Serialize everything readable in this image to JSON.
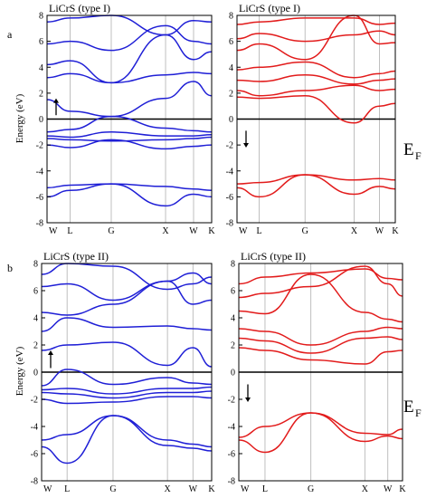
{
  "figure": {
    "ef_label": "E",
    "ef_sub": "F",
    "ylabel": "Energy (eV)"
  },
  "chart_data": [
    {
      "type": "line",
      "panel": "a",
      "title": "LiCrS (type I)",
      "spin": "up",
      "color": "#1f1fd6",
      "x_ticks": [
        "W",
        "L",
        "G",
        "X",
        "W",
        "K"
      ],
      "x_tick_positions": [
        0,
        0.14,
        0.39,
        0.72,
        0.89,
        1.0
      ],
      "ylim": [
        -8,
        8
      ],
      "y_ticks": [
        -8,
        -6,
        -4,
        -2,
        0,
        2,
        4,
        6,
        8
      ],
      "ylabel": "Energy (eV)",
      "grid_x": true,
      "spin_arrow": "up",
      "series": [
        {
          "x": [
            0,
            0.14,
            0.39,
            0.72,
            0.89,
            1.0
          ],
          "y": [
            -6.0,
            -5.5,
            -5.0,
            -6.7,
            -5.8,
            -6.0
          ]
        },
        {
          "x": [
            0,
            0.14,
            0.39,
            0.72,
            0.89,
            1.0
          ],
          "y": [
            -5.3,
            -5.1,
            -5.0,
            -5.2,
            -5.4,
            -5.5
          ]
        },
        {
          "x": [
            0,
            0.14,
            0.39,
            0.72,
            0.89,
            1.0
          ],
          "y": [
            -2.0,
            -2.2,
            -1.6,
            -2.3,
            -2.1,
            -2.0
          ]
        },
        {
          "x": [
            0,
            0.14,
            0.39,
            0.72,
            0.89,
            1.0
          ],
          "y": [
            -1.5,
            -1.6,
            -1.7,
            -1.6,
            -1.5,
            -1.4
          ]
        },
        {
          "x": [
            0,
            0.14,
            0.39,
            0.72,
            0.89,
            1.0
          ],
          "y": [
            -1.3,
            -1.4,
            -1.0,
            -1.3,
            -1.3,
            -1.2
          ]
        },
        {
          "x": [
            0,
            0.14,
            0.39,
            0.72,
            0.89,
            1.0
          ],
          "y": [
            -1.0,
            -0.8,
            0.2,
            -0.7,
            -0.9,
            -1.0
          ]
        },
        {
          "x": [
            0,
            0.14,
            0.39,
            0.72,
            0.89,
            1.0
          ],
          "y": [
            1.5,
            0.6,
            0.2,
            1.6,
            2.9,
            1.8
          ]
        },
        {
          "x": [
            0,
            0.14,
            0.39,
            0.72,
            0.89,
            1.0
          ],
          "y": [
            3.2,
            3.5,
            2.8,
            3.4,
            3.6,
            3.5
          ]
        },
        {
          "x": [
            0,
            0.14,
            0.39,
            0.72,
            0.89,
            1.0
          ],
          "y": [
            4.2,
            4.5,
            2.8,
            6.5,
            4.6,
            5.2
          ]
        },
        {
          "x": [
            0,
            0.14,
            0.39,
            0.72,
            0.89,
            1.0
          ],
          "y": [
            5.8,
            6.0,
            5.3,
            7.2,
            6.0,
            5.8
          ]
        },
        {
          "x": [
            0,
            0.14,
            0.39,
            0.72,
            0.89,
            1.0
          ],
          "y": [
            7.5,
            7.8,
            8.0,
            6.5,
            7.6,
            7.5
          ]
        }
      ]
    },
    {
      "type": "line",
      "panel": "a",
      "title": "LiCrS (type I)",
      "spin": "down",
      "color": "#e21b1b",
      "x_ticks": [
        "W",
        "L",
        "G",
        "X",
        "W",
        "K"
      ],
      "x_tick_positions": [
        0,
        0.14,
        0.43,
        0.74,
        0.9,
        1.0
      ],
      "ylim": [
        -8,
        8
      ],
      "y_ticks": [
        -8,
        -6,
        -4,
        -2,
        0,
        2,
        4,
        6,
        8
      ],
      "grid_x": true,
      "spin_arrow": "down",
      "series": [
        {
          "x": [
            0,
            0.14,
            0.43,
            0.74,
            0.9,
            1.0
          ],
          "y": [
            -5.3,
            -6.0,
            -4.3,
            -5.8,
            -5.2,
            -5.4
          ]
        },
        {
          "x": [
            0,
            0.14,
            0.43,
            0.74,
            0.9,
            1.0
          ],
          "y": [
            -5.0,
            -4.9,
            -4.3,
            -4.7,
            -4.6,
            -4.7
          ]
        },
        {
          "x": [
            0,
            0.14,
            0.43,
            0.74,
            0.9,
            1.0
          ],
          "y": [
            1.7,
            1.6,
            1.8,
            -0.3,
            1.0,
            1.2
          ]
        },
        {
          "x": [
            0,
            0.14,
            0.43,
            0.74,
            0.9,
            1.0
          ],
          "y": [
            2.2,
            1.8,
            2.2,
            2.6,
            2.2,
            2.3
          ]
        },
        {
          "x": [
            0,
            0.14,
            0.43,
            0.74,
            0.9,
            1.0
          ],
          "y": [
            3.0,
            2.9,
            3.4,
            2.7,
            3.0,
            3.1
          ]
        },
        {
          "x": [
            0,
            0.14,
            0.43,
            0.74,
            0.9,
            1.0
          ],
          "y": [
            3.8,
            4.0,
            4.4,
            3.2,
            3.5,
            3.7
          ]
        },
        {
          "x": [
            0,
            0.14,
            0.43,
            0.74,
            0.9,
            1.0
          ],
          "y": [
            5.3,
            5.8,
            4.6,
            8.0,
            5.8,
            5.9
          ]
        },
        {
          "x": [
            0,
            0.14,
            0.43,
            0.74,
            0.9,
            1.0
          ],
          "y": [
            6.2,
            6.6,
            6.0,
            6.5,
            6.8,
            6.5
          ]
        },
        {
          "x": [
            0,
            0.14,
            0.43,
            0.74,
            0.9,
            1.0
          ],
          "y": [
            7.3,
            7.5,
            7.8,
            7.8,
            7.3,
            7.4
          ]
        }
      ]
    },
    {
      "type": "line",
      "panel": "b",
      "title": "LiCrS (type II)",
      "spin": "up",
      "color": "#1f1fd6",
      "x_ticks": [
        "W",
        "L",
        "G",
        "X",
        "W",
        "K"
      ],
      "x_tick_positions": [
        0,
        0.15,
        0.42,
        0.74,
        0.89,
        1.0
      ],
      "ylim": [
        -8,
        8
      ],
      "y_ticks": [
        -8,
        -6,
        -4,
        -2,
        0,
        2,
        4,
        6,
        8
      ],
      "ylabel": "Energy (eV)",
      "grid_x": true,
      "spin_arrow": "up",
      "series": [
        {
          "x": [
            0,
            0.15,
            0.42,
            0.74,
            0.89,
            1.0
          ],
          "y": [
            -5.5,
            -6.7,
            -3.2,
            -5.4,
            -5.6,
            -5.8
          ]
        },
        {
          "x": [
            0,
            0.15,
            0.42,
            0.74,
            0.89,
            1.0
          ],
          "y": [
            -5.0,
            -4.6,
            -3.2,
            -5.0,
            -5.3,
            -5.5
          ]
        },
        {
          "x": [
            0,
            0.15,
            0.42,
            0.74,
            0.89,
            1.0
          ],
          "y": [
            -2.0,
            -2.3,
            -2.2,
            -1.8,
            -1.8,
            -1.9
          ]
        },
        {
          "x": [
            0,
            0.15,
            0.42,
            0.74,
            0.89,
            1.0
          ],
          "y": [
            -1.5,
            -1.6,
            -1.9,
            -1.5,
            -1.5,
            -1.4
          ]
        },
        {
          "x": [
            0,
            0.15,
            0.42,
            0.74,
            0.89,
            1.0
          ],
          "y": [
            -1.3,
            -1.2,
            -1.6,
            -1.2,
            -1.2,
            -1.1
          ]
        },
        {
          "x": [
            0,
            0.15,
            0.42,
            0.74,
            0.89,
            1.0
          ],
          "y": [
            -1.0,
            0.2,
            -0.9,
            -0.4,
            -0.8,
            -0.9
          ]
        },
        {
          "x": [
            0,
            0.15,
            0.42,
            0.74,
            0.89,
            1.0
          ],
          "y": [
            1.6,
            2.0,
            2.2,
            0.5,
            1.8,
            0.4
          ]
        },
        {
          "x": [
            0,
            0.15,
            0.42,
            0.74,
            0.89,
            1.0
          ],
          "y": [
            3.0,
            4.0,
            3.3,
            3.4,
            3.2,
            3.1
          ]
        },
        {
          "x": [
            0,
            0.15,
            0.42,
            0.74,
            0.89,
            1.0
          ],
          "y": [
            4.4,
            4.2,
            5.0,
            6.7,
            5.0,
            5.3
          ]
        },
        {
          "x": [
            0,
            0.15,
            0.42,
            0.74,
            0.89,
            1.0
          ],
          "y": [
            6.3,
            6.5,
            5.3,
            6.7,
            7.3,
            6.5
          ]
        },
        {
          "x": [
            0,
            0.15,
            0.42,
            0.74,
            0.89,
            1.0
          ],
          "y": [
            7.2,
            8.0,
            7.8,
            6.1,
            6.5,
            7.0
          ]
        }
      ]
    },
    {
      "type": "line",
      "panel": "b",
      "title": "LiCrS (type II)",
      "spin": "down",
      "color": "#e21b1b",
      "x_ticks": [
        "W",
        "L",
        "G",
        "X",
        "W",
        "K"
      ],
      "x_tick_positions": [
        0,
        0.16,
        0.44,
        0.77,
        0.91,
        1.0
      ],
      "ylim": [
        -8,
        8
      ],
      "y_ticks": [
        -8,
        -6,
        -4,
        -2,
        0,
        2,
        4,
        6,
        8
      ],
      "grid_x": true,
      "spin_arrow": "down",
      "series": [
        {
          "x": [
            0,
            0.16,
            0.44,
            0.77,
            0.91,
            1.0
          ],
          "y": [
            -5.0,
            -5.9,
            -3.0,
            -5.1,
            -4.7,
            -4.9
          ]
        },
        {
          "x": [
            0,
            0.16,
            0.44,
            0.77,
            0.91,
            1.0
          ],
          "y": [
            -4.8,
            -4.0,
            -3.0,
            -4.5,
            -4.6,
            -4.2
          ]
        },
        {
          "x": [
            0,
            0.16,
            0.44,
            0.77,
            0.91,
            1.0
          ],
          "y": [
            1.8,
            1.6,
            0.9,
            0.6,
            1.5,
            1.6
          ]
        },
        {
          "x": [
            0,
            0.16,
            0.44,
            0.77,
            0.91,
            1.0
          ],
          "y": [
            2.5,
            2.3,
            1.4,
            2.5,
            2.6,
            2.4
          ]
        },
        {
          "x": [
            0,
            0.16,
            0.44,
            0.77,
            0.91,
            1.0
          ],
          "y": [
            3.2,
            3.0,
            2.0,
            3.0,
            3.3,
            3.2
          ]
        },
        {
          "x": [
            0,
            0.16,
            0.44,
            0.77,
            0.91,
            1.0
          ],
          "y": [
            4.5,
            4.3,
            7.2,
            4.4,
            3.9,
            3.7
          ]
        },
        {
          "x": [
            0,
            0.16,
            0.44,
            0.77,
            0.91,
            1.0
          ],
          "y": [
            5.5,
            5.8,
            6.3,
            7.8,
            6.5,
            5.6
          ]
        },
        {
          "x": [
            0,
            0.16,
            0.44,
            0.77,
            0.91,
            1.0
          ],
          "y": [
            6.5,
            7.0,
            7.3,
            7.6,
            6.9,
            6.8
          ]
        }
      ]
    }
  ]
}
